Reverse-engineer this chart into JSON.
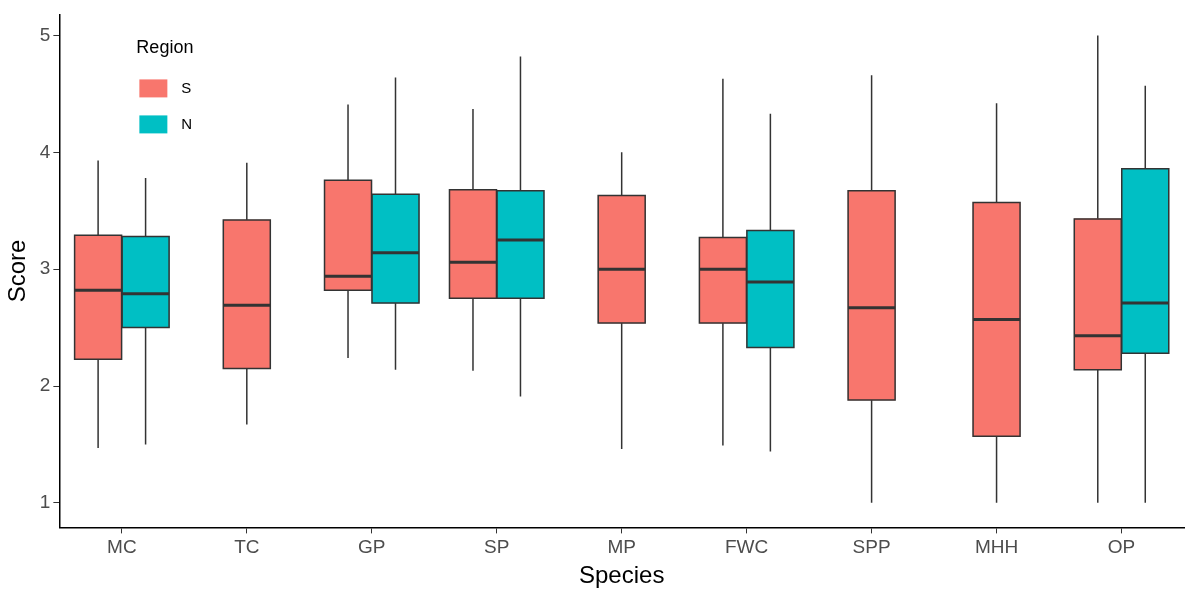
{
  "chart_data": {
    "type": "box",
    "xlabel": "Species",
    "ylabel": "Score",
    "legend_title": "Region",
    "legend": "top left",
    "grid": false,
    "categories": [
      "MC",
      "TC",
      "GP",
      "SP",
      "MP",
      "FWC",
      "SPP",
      "MHH",
      "OP"
    ],
    "ylim": [
      0.79,
      5.18
    ],
    "yticks": [
      1,
      2,
      3,
      4,
      5
    ],
    "series": [
      {
        "name": "S",
        "color": "#f8766d",
        "boxes": [
          {
            "low": 1.47,
            "q1": 2.23,
            "median": 2.82,
            "q3": 3.29,
            "high": 3.93
          },
          {
            "low": 1.67,
            "q1": 2.15,
            "median": 2.69,
            "q3": 3.42,
            "high": 3.91
          },
          {
            "low": 2.24,
            "q1": 2.82,
            "median": 2.94,
            "q3": 3.76,
            "high": 4.41
          },
          {
            "low": 2.13,
            "q1": 2.75,
            "median": 3.06,
            "q3": 3.68,
            "high": 4.37
          },
          {
            "low": 1.46,
            "q1": 2.54,
            "median": 3.0,
            "q3": 3.63,
            "high": 4.0
          },
          {
            "low": 1.49,
            "q1": 2.54,
            "median": 3.0,
            "q3": 3.27,
            "high": 4.63
          },
          {
            "low": 1.0,
            "q1": 1.88,
            "median": 2.67,
            "q3": 3.67,
            "high": 4.66
          },
          {
            "low": 1.0,
            "q1": 1.57,
            "median": 2.57,
            "q3": 3.57,
            "high": 4.42
          },
          {
            "low": 1.0,
            "q1": 2.14,
            "median": 2.43,
            "q3": 3.43,
            "high": 5.0
          }
        ]
      },
      {
        "name": "N",
        "color": "#00bfc4",
        "boxes": [
          {
            "low": 1.5,
            "q1": 2.5,
            "median": 2.79,
            "q3": 3.28,
            "high": 3.78
          },
          null,
          {
            "low": 2.14,
            "q1": 2.71,
            "median": 3.14,
            "q3": 3.64,
            "high": 4.64
          },
          {
            "low": 1.91,
            "q1": 2.75,
            "median": 3.25,
            "q3": 3.67,
            "high": 4.82
          },
          null,
          {
            "low": 1.44,
            "q1": 2.33,
            "median": 2.89,
            "q3": 3.33,
            "high": 4.33
          },
          null,
          null,
          {
            "low": 1.0,
            "q1": 2.28,
            "median": 2.71,
            "q3": 3.86,
            "high": 4.57
          }
        ]
      }
    ]
  }
}
